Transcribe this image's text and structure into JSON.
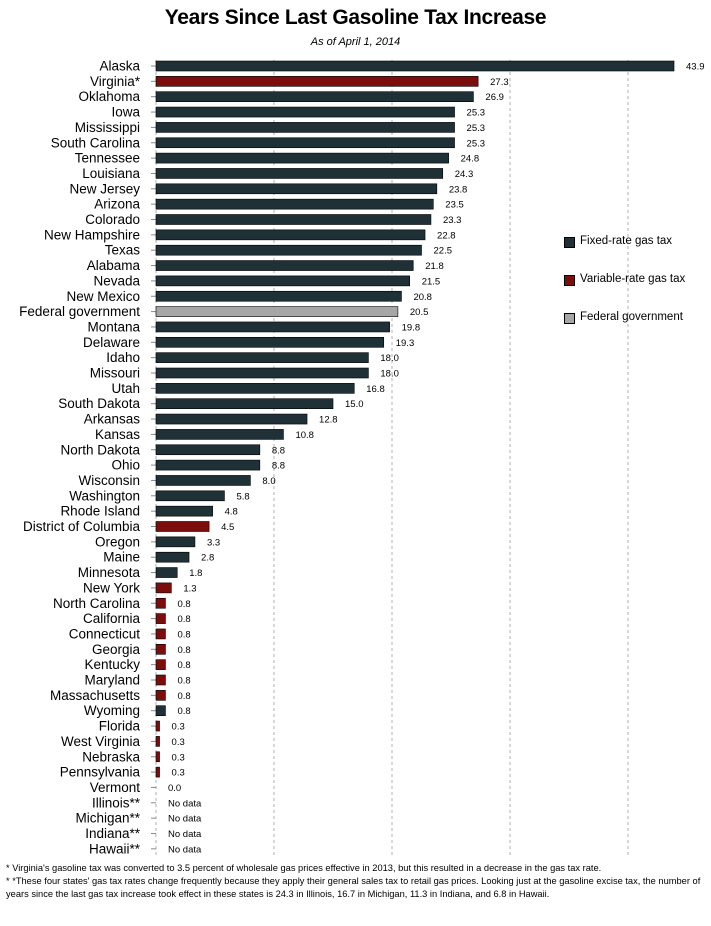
{
  "title": "Years Since Last Gasoline Tax Increase",
  "subtitle": "As of April 1, 2014",
  "colors": {
    "fixed": "#1f3036",
    "variable": "#7b0d0d",
    "federal": "#a6a6a6"
  },
  "legend": [
    {
      "label": "Fixed-rate gas tax",
      "color": "#1f3036"
    },
    {
      "label": "Variable-rate gas tax",
      "color": "#7b0d0d"
    },
    {
      "label": "Federal government",
      "color": "#a6a6a6"
    }
  ],
  "footnotes": [
    "* Virginia's gasoline tax was converted to 3.5 percent of wholesale gas prices effective in 2013, but this resulted in a decrease in the gas tax rate.",
    "* *These four states' gas tax rates change frequently because they apply their general sales tax to retail gas prices. Looking just at the gasoline excise tax, the number of years since the last gas tax increase took effect in these states is 24.3 in Illinois, 16.7 in Michigan, 11.3 in Indiana, and 6.8 in Hawaii."
  ],
  "chart_data": {
    "type": "bar",
    "orientation": "horizontal",
    "title": "Years Since Last Gasoline Tax Increase",
    "subtitle": "As of April 1, 2014",
    "xlim": [
      0,
      45
    ],
    "grid": "vertical dashed",
    "legend_position": "right",
    "categories": [
      "Alaska",
      "Virginia*",
      "Oklahoma",
      "Iowa",
      "Mississippi",
      "South Carolina",
      "Tennessee",
      "Louisiana",
      "New Jersey",
      "Arizona",
      "Colorado",
      "New Hampshire",
      "Texas",
      "Alabama",
      "Nevada",
      "New Mexico",
      "Federal government",
      "Montana",
      "Delaware",
      "Idaho",
      "Missouri",
      "Utah",
      "South Dakota",
      "Arkansas",
      "Kansas",
      "North Dakota",
      "Ohio",
      "Wisconsin",
      "Washington",
      "Rhode Island",
      "District of Columbia",
      "Oregon",
      "Maine",
      "Minnesota",
      "New York",
      "North Carolina",
      "California",
      "Connecticut",
      "Georgia",
      "Kentucky",
      "Maryland",
      "Massachusetts",
      "Wyoming",
      "Florida",
      "West Virginia",
      "Nebraska",
      "Pennsylvania",
      "Vermont",
      "Illinois**",
      "Michigan**",
      "Indiana**",
      "Hawaii**"
    ],
    "values": [
      43.9,
      27.3,
      26.9,
      25.3,
      25.3,
      25.3,
      24.8,
      24.3,
      23.8,
      23.5,
      23.3,
      22.8,
      22.5,
      21.8,
      21.5,
      20.8,
      20.5,
      19.8,
      19.3,
      18.0,
      18.0,
      16.8,
      15.0,
      12.8,
      10.8,
      8.8,
      8.8,
      8.0,
      5.8,
      4.8,
      4.5,
      3.3,
      2.8,
      1.8,
      1.3,
      0.8,
      0.8,
      0.8,
      0.8,
      0.8,
      0.8,
      0.8,
      0.8,
      0.3,
      0.3,
      0.3,
      0.3,
      0.0,
      null,
      null,
      null,
      null
    ],
    "value_labels": [
      "43.9",
      "27.3",
      "26.9",
      "25.3",
      "25.3",
      "25.3",
      "24.8",
      "24.3",
      "23.8",
      "23.5",
      "23.3",
      "22.8",
      "22.5",
      "21.8",
      "21.5",
      "20.8",
      "20.5",
      "19.8",
      "19.3",
      "18.0",
      "18.0",
      "16.8",
      "15.0",
      "12.8",
      "10.8",
      "8.8",
      "8.8",
      "8.0",
      "5.8",
      "4.8",
      "4.5",
      "3.3",
      "2.8",
      "1.8",
      "1.3",
      "0.8",
      "0.8",
      "0.8",
      "0.8",
      "0.8",
      "0.8",
      "0.8",
      "0.8",
      "0.3",
      "0.3",
      "0.3",
      "0.3",
      "0.0",
      "No data",
      "No data",
      "No data",
      "No data"
    ],
    "types": [
      "fixed",
      "variable",
      "fixed",
      "fixed",
      "fixed",
      "fixed",
      "fixed",
      "fixed",
      "fixed",
      "fixed",
      "fixed",
      "fixed",
      "fixed",
      "fixed",
      "fixed",
      "fixed",
      "federal",
      "fixed",
      "fixed",
      "fixed",
      "fixed",
      "fixed",
      "fixed",
      "fixed",
      "fixed",
      "fixed",
      "fixed",
      "fixed",
      "fixed",
      "fixed",
      "variable",
      "fixed",
      "fixed",
      "fixed",
      "variable",
      "variable",
      "variable",
      "variable",
      "variable",
      "variable",
      "variable",
      "variable",
      "fixed",
      "variable",
      "variable",
      "variable",
      "variable",
      "fixed",
      "none",
      "none",
      "none",
      "none"
    ]
  }
}
